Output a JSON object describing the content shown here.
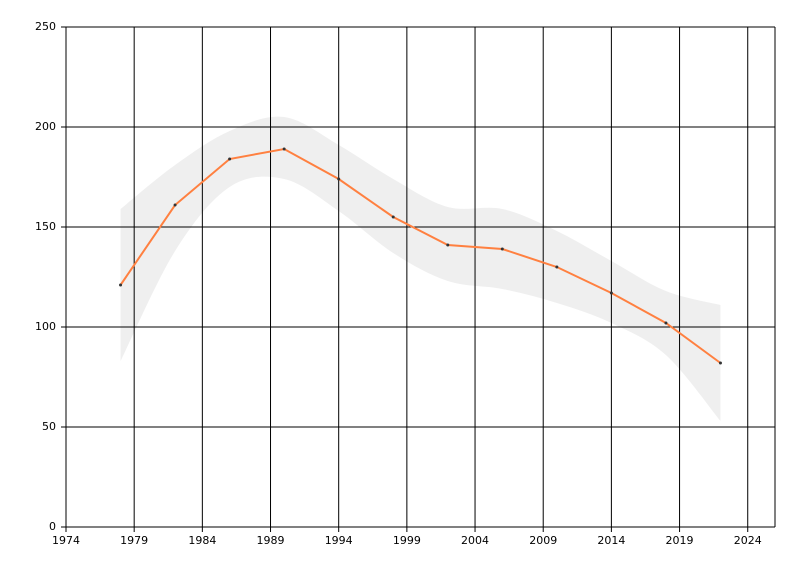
{
  "chart_data": {
    "type": "line",
    "x": [
      1978,
      1982,
      1986,
      1990,
      1994,
      1998,
      2002,
      2006,
      2010,
      2014,
      2018,
      2022
    ],
    "series": [
      {
        "color": "#ff8040",
        "values": [
          121,
          161,
          184,
          189,
          174,
          155,
          141,
          139,
          130,
          117,
          102,
          82
        ]
      }
    ],
    "band": {
      "color": "#efefef",
      "upper": [
        159,
        181,
        198,
        205,
        191,
        174,
        160,
        159,
        148,
        133,
        118,
        111
      ],
      "lower": [
        83,
        138,
        170,
        174,
        158,
        137,
        123,
        119,
        112,
        102,
        86,
        53
      ]
    },
    "xlim": [
      1974,
      2026
    ],
    "xticks": [
      1974,
      1979,
      1984,
      1989,
      1994,
      1999,
      2004,
      2009,
      2014,
      2019,
      2024
    ],
    "ylim": [
      0,
      250
    ],
    "yticks": [
      0,
      50,
      100,
      150,
      200,
      250
    ],
    "grid": true
  }
}
